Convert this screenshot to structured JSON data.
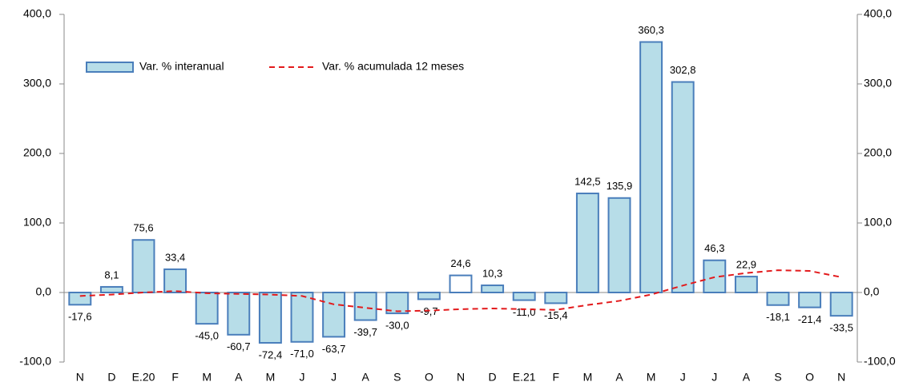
{
  "chart_data": {
    "type": "bar",
    "categories": [
      "N",
      "D",
      "E.20",
      "F",
      "M",
      "A",
      "M",
      "J",
      "J",
      "A",
      "S",
      "O",
      "N",
      "D",
      "E.21",
      "F",
      "M",
      "A",
      "M",
      "J",
      "J",
      "A",
      "S",
      "O",
      "N"
    ],
    "series": [
      {
        "name": "Var. % interanual",
        "type": "bar",
        "color": "#b7dde8",
        "edge_color": "#4a7ebb",
        "bar_colors": [
          "#b7dde8",
          "#b7dde8",
          "#b7dde8",
          "#b7dde8",
          "#b7dde8",
          "#b7dde8",
          "#b7dde8",
          "#b7dde8",
          "#b7dde8",
          "#b7dde8",
          "#b7dde8",
          "#b7dde8",
          "#ffffff",
          "#b7dde8",
          "#b7dde8",
          "#b7dde8",
          "#b7dde8",
          "#b7dde8",
          "#b7dde8",
          "#b7dde8",
          "#b7dde8",
          "#b7dde8",
          "#b7dde8",
          "#b7dde8",
          "#b7dde8"
        ],
        "values": [
          -17.6,
          8.1,
          75.6,
          33.4,
          -45.0,
          -60.7,
          -72.4,
          -71.0,
          -63.7,
          -39.7,
          -30.0,
          -9.7,
          24.6,
          10.3,
          -11.0,
          -15.4,
          142.5,
          135.9,
          360.3,
          302.8,
          46.3,
          22.9,
          -18.1,
          -21.4,
          -33.5
        ],
        "value_labels": [
          "-17,6",
          "8,1",
          "75,6",
          "33,4",
          "-45,0",
          "-60,7",
          "-72,4",
          "-71,0",
          "-63,7",
          "-39,7",
          "-30,0",
          "-9,7",
          "24,6",
          "10,3",
          "-11,0",
          "-15,4",
          "142,5",
          "135,9",
          "360,3",
          "302,8",
          "46,3",
          "22,9",
          "-18,1",
          "-21,4",
          "-33,5"
        ]
      },
      {
        "name": "Var. % acumulada 12 meses",
        "type": "line",
        "axis": "y2",
        "color": "#e31a1c",
        "dashed": true,
        "values": [
          -5,
          -3,
          0,
          2,
          -1,
          -2,
          -3,
          -5,
          -17,
          -22,
          -27,
          -26,
          -24,
          -23,
          -24,
          -25,
          -18,
          -12,
          -3,
          10,
          22,
          28,
          32,
          31,
          22
        ]
      }
    ],
    "ylim": [
      -100,
      400
    ],
    "yticks": [
      {
        "value": -100,
        "label": "-100,0"
      },
      {
        "value": 0,
        "label": "0,0"
      },
      {
        "value": 100,
        "label": "100,0"
      },
      {
        "value": 200,
        "label": "200,0"
      },
      {
        "value": 300,
        "label": "300,0"
      },
      {
        "value": 400,
        "label": "400,0"
      }
    ],
    "y2lim": [
      -100,
      400
    ],
    "y2ticks": [
      {
        "value": -100,
        "label": "-100,0"
      },
      {
        "value": 0,
        "label": "0,0"
      },
      {
        "value": 100,
        "label": "100,0"
      },
      {
        "value": 200,
        "label": "200,0"
      },
      {
        "value": 300,
        "label": "300,0"
      },
      {
        "value": 400,
        "label": "400,0"
      }
    ],
    "legend": "upper left"
  }
}
